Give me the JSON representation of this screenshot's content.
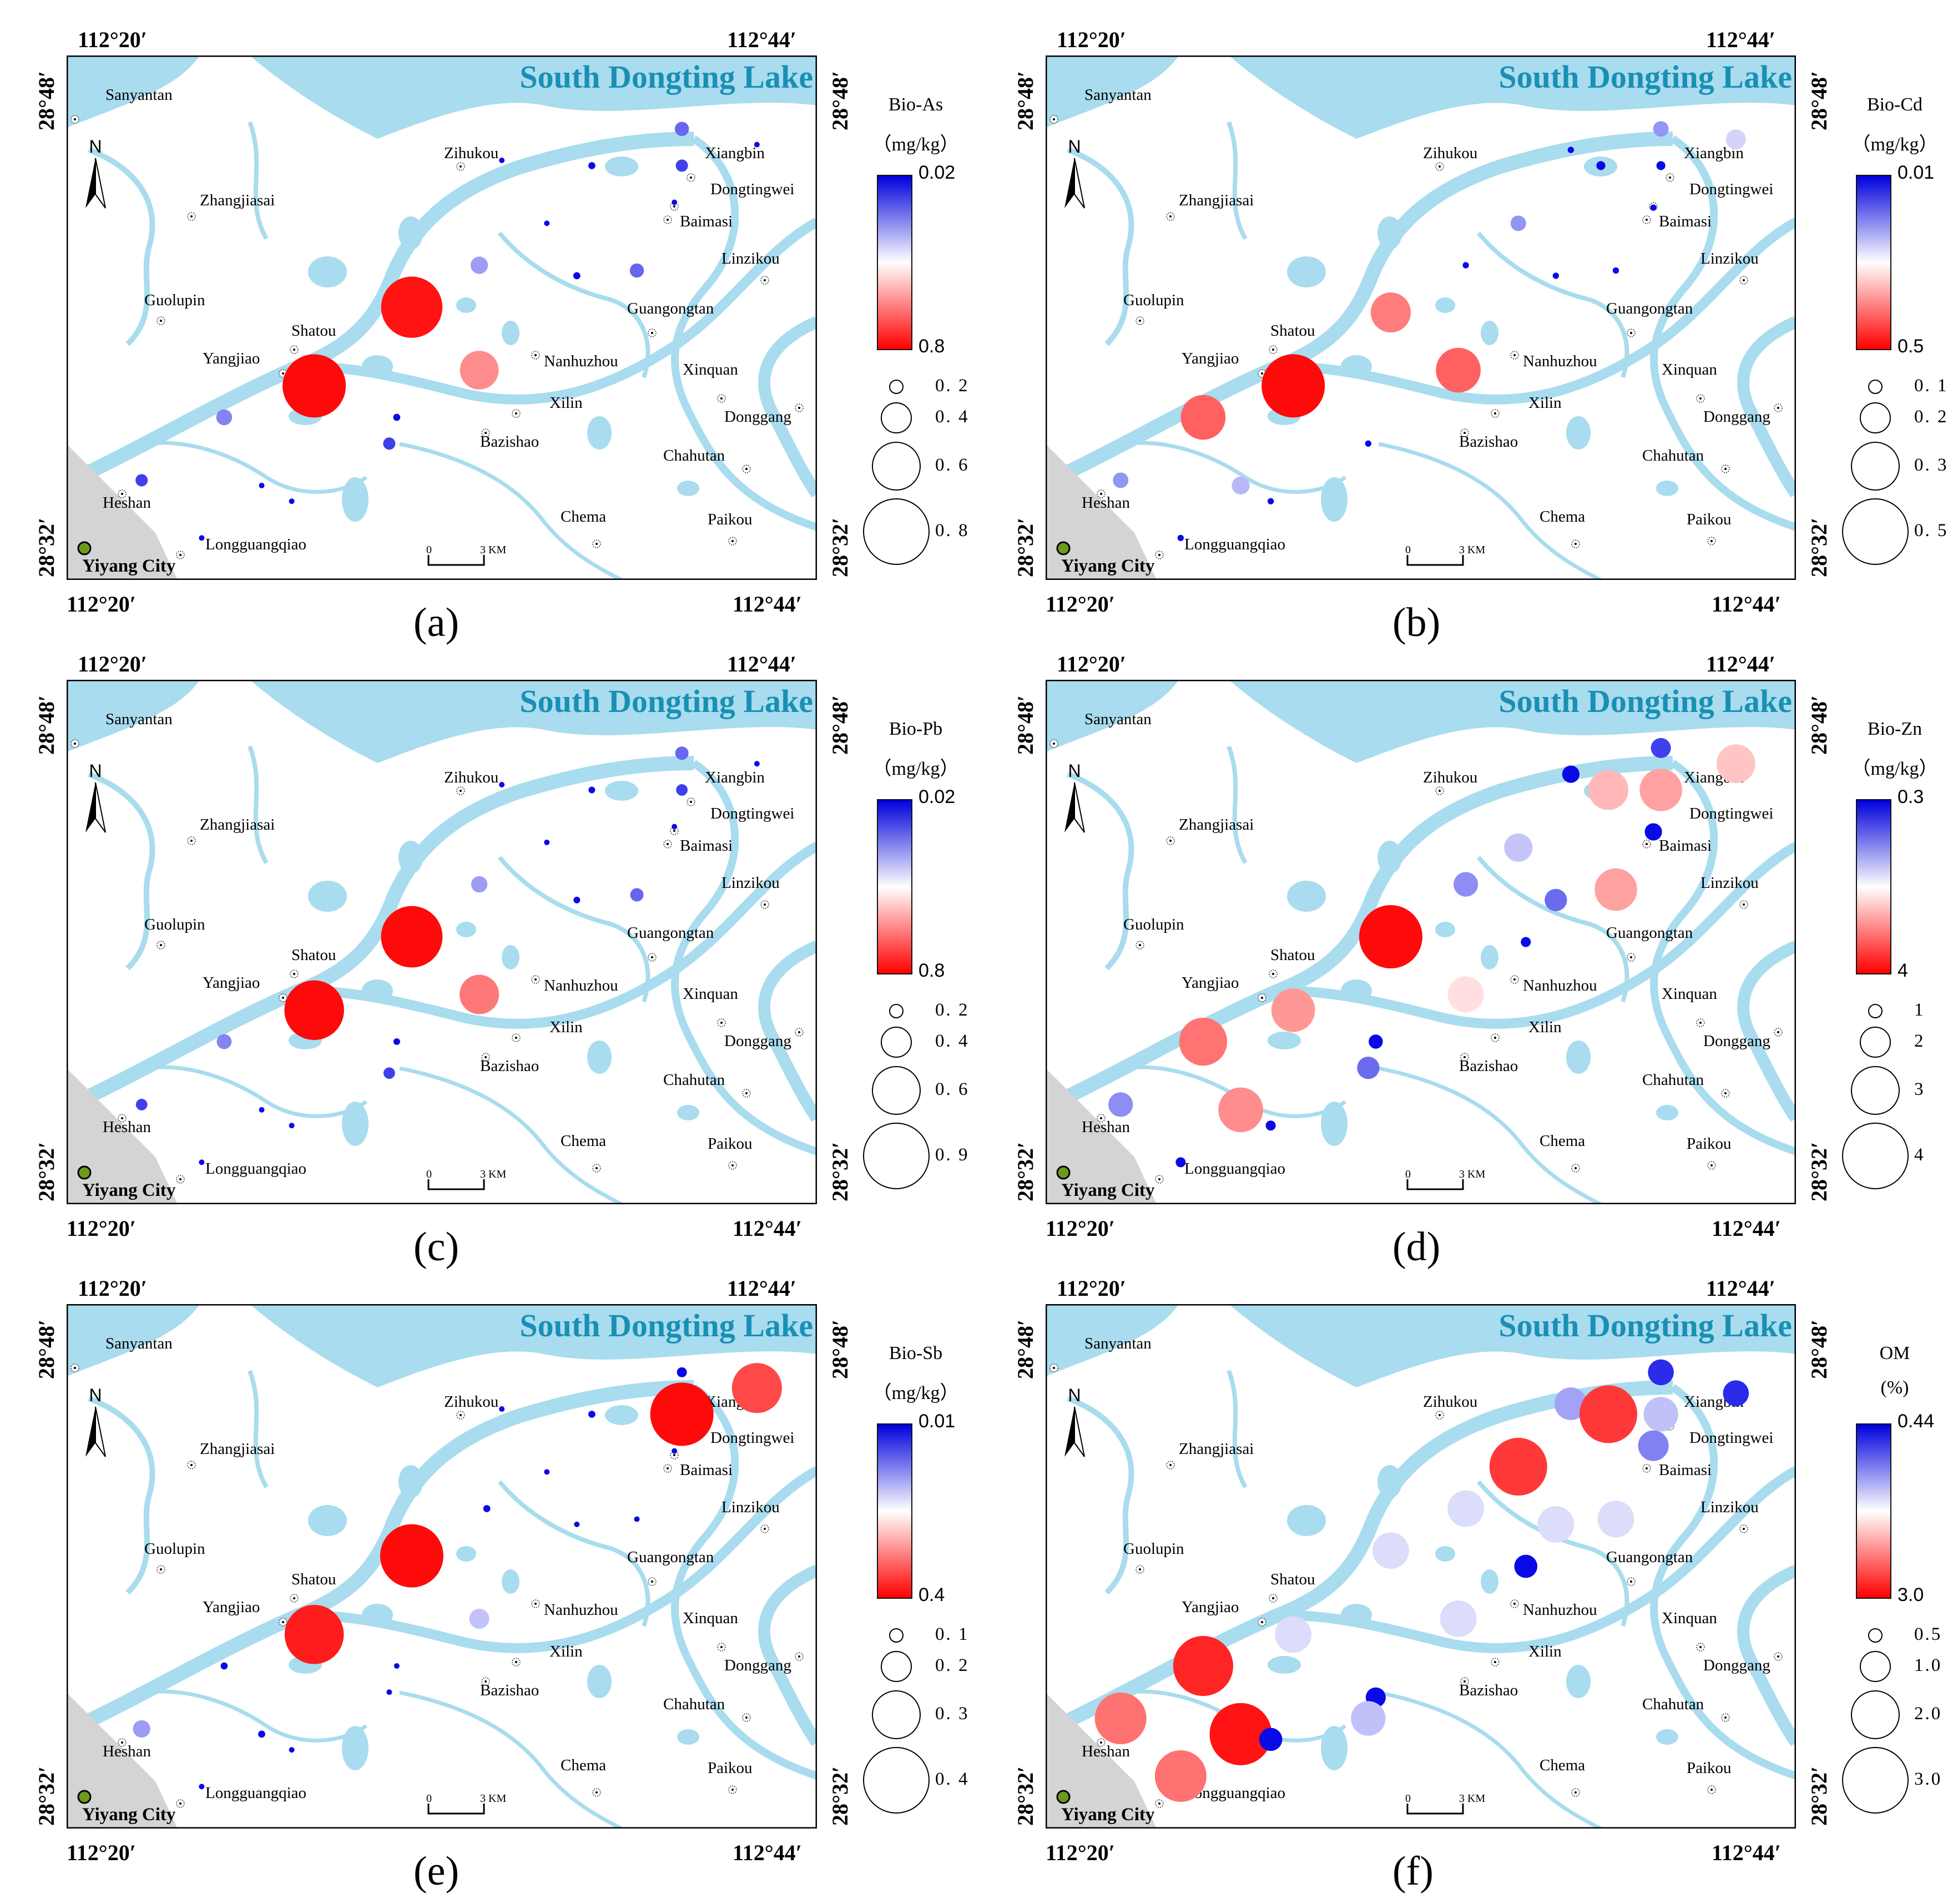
{
  "coords": {
    "lon_left": "112°20′",
    "lon_right": "112°44′",
    "lat_top": "28°48′",
    "lat_bottom": "28°32′"
  },
  "map_labels": {
    "lake": "South Dongting Lake",
    "city": "Yiyang City",
    "north": "N",
    "scale_zero": "0",
    "scale_km": "3 KM",
    "places": [
      "Sanyantan",
      "Zihukou",
      "Xiangbin",
      "Zhangjiasai",
      "Dongtingwei",
      "Baimasi",
      "Linzikou",
      "Guolupin",
      "Shatou",
      "Guangongtan",
      "Yangjiao",
      "Nanhuzhou",
      "Xinquan",
      "Xilin",
      "Donggang",
      "Bazishao",
      "Chahutan",
      "Heshan",
      "Chema",
      "Paikou",
      "Longguangqiao"
    ]
  },
  "colors": {
    "water": "#a8dcee",
    "high": "#ff0000",
    "mid": "#ffffff",
    "low": "#0000dd",
    "lake_text": "#1a8fb5",
    "city_dot": "#6b9a1e",
    "urban": "#d4d4d4"
  },
  "panels": [
    {
      "letter": "(a)",
      "variable": "Bio-As",
      "unit": "（mg/kg）",
      "cbar_top": "0.02",
      "cbar_bottom": "0.8",
      "size_legend": [
        "0. 2",
        "0. 4",
        "0. 6",
        "0. 8"
      ],
      "size_values": [
        0.2,
        0.4,
        0.6,
        0.8
      ],
      "points": [
        {
          "lon": 0.82,
          "lat": 0.86,
          "v": 0.04
        },
        {
          "lon": 0.82,
          "lat": 0.79,
          "v": 0.03
        },
        {
          "lon": 0.92,
          "lat": 0.83,
          "v": 0.005
        },
        {
          "lon": 0.7,
          "lat": 0.79,
          "v": 0.01
        },
        {
          "lon": 0.58,
          "lat": 0.8,
          "v": 0.005
        },
        {
          "lon": 0.64,
          "lat": 0.68,
          "v": 0.005
        },
        {
          "lon": 0.81,
          "lat": 0.72,
          "v": 0.005
        },
        {
          "lon": 0.68,
          "lat": 0.58,
          "v": 0.01
        },
        {
          "lon": 0.76,
          "lat": 0.59,
          "v": 0.04
        },
        {
          "lon": 0.55,
          "lat": 0.6,
          "v": 0.06
        },
        {
          "lon": 0.46,
          "lat": 0.52,
          "v": 0.75
        },
        {
          "lon": 0.55,
          "lat": 0.4,
          "v": 0.3
        },
        {
          "lon": 0.33,
          "lat": 0.37,
          "v": 0.8
        },
        {
          "lon": 0.21,
          "lat": 0.31,
          "v": 0.05
        },
        {
          "lon": 0.44,
          "lat": 0.31,
          "v": 0.01
        },
        {
          "lon": 0.43,
          "lat": 0.26,
          "v": 0.03
        },
        {
          "lon": 0.26,
          "lat": 0.18,
          "v": 0.005
        },
        {
          "lon": 0.3,
          "lat": 0.15,
          "v": 0.005
        },
        {
          "lon": 0.1,
          "lat": 0.19,
          "v": 0.03
        },
        {
          "lon": 0.18,
          "lat": 0.08,
          "v": 0.005
        }
      ]
    },
    {
      "letter": "(b)",
      "variable": "Bio-Cd",
      "unit": "（mg/kg）",
      "cbar_top": "0.01",
      "cbar_bottom": "0.5",
      "size_legend": [
        "0. 1",
        "0. 2",
        "0. 3",
        "0. 5"
      ],
      "size_values": [
        0.1,
        0.2,
        0.3,
        0.5
      ],
      "points": [
        {
          "lon": 0.82,
          "lat": 0.86,
          "v": 0.03
        },
        {
          "lon": 0.92,
          "lat": 0.84,
          "v": 0.05
        },
        {
          "lon": 0.7,
          "lat": 0.82,
          "v": 0.005
        },
        {
          "lon": 0.74,
          "lat": 0.79,
          "v": 0.01
        },
        {
          "lon": 0.82,
          "lat": 0.79,
          "v": 0.01
        },
        {
          "lon": 0.81,
          "lat": 0.71,
          "v": 0.005
        },
        {
          "lon": 0.63,
          "lat": 0.68,
          "v": 0.03
        },
        {
          "lon": 0.56,
          "lat": 0.6,
          "v": 0.005
        },
        {
          "lon": 0.68,
          "lat": 0.58,
          "v": 0.005
        },
        {
          "lon": 0.76,
          "lat": 0.59,
          "v": 0.005
        },
        {
          "lon": 0.46,
          "lat": 0.51,
          "v": 0.2
        },
        {
          "lon": 0.55,
          "lat": 0.4,
          "v": 0.25
        },
        {
          "lon": 0.33,
          "lat": 0.37,
          "v": 0.5
        },
        {
          "lon": 0.21,
          "lat": 0.31,
          "v": 0.25
        },
        {
          "lon": 0.43,
          "lat": 0.26,
          "v": 0.005
        },
        {
          "lon": 0.26,
          "lat": 0.18,
          "v": 0.04
        },
        {
          "lon": 0.3,
          "lat": 0.15,
          "v": 0.005
        },
        {
          "lon": 0.1,
          "lat": 0.19,
          "v": 0.03
        },
        {
          "lon": 0.18,
          "lat": 0.08,
          "v": 0.005
        }
      ]
    },
    {
      "letter": "(c)",
      "variable": "Bio-Pb",
      "unit": "（mg/kg）",
      "cbar_top": "0.02",
      "cbar_bottom": "0.8",
      "size_legend": [
        "0. 2",
        "0. 4",
        "0. 6",
        "0. 9"
      ],
      "size_values": [
        0.2,
        0.4,
        0.6,
        0.9
      ],
      "points": [
        {
          "lon": 0.82,
          "lat": 0.86,
          "v": 0.04
        },
        {
          "lon": 0.82,
          "lat": 0.79,
          "v": 0.03
        },
        {
          "lon": 0.92,
          "lat": 0.84,
          "v": 0.005
        },
        {
          "lon": 0.7,
          "lat": 0.79,
          "v": 0.01
        },
        {
          "lon": 0.58,
          "lat": 0.8,
          "v": 0.005
        },
        {
          "lon": 0.64,
          "lat": 0.69,
          "v": 0.005
        },
        {
          "lon": 0.81,
          "lat": 0.72,
          "v": 0.005
        },
        {
          "lon": 0.68,
          "lat": 0.58,
          "v": 0.01
        },
        {
          "lon": 0.76,
          "lat": 0.59,
          "v": 0.04
        },
        {
          "lon": 0.55,
          "lat": 0.61,
          "v": 0.06
        },
        {
          "lon": 0.46,
          "lat": 0.51,
          "v": 0.85
        },
        {
          "lon": 0.55,
          "lat": 0.4,
          "v": 0.35
        },
        {
          "lon": 0.33,
          "lat": 0.37,
          "v": 0.8
        },
        {
          "lon": 0.21,
          "lat": 0.31,
          "v": 0.05
        },
        {
          "lon": 0.44,
          "lat": 0.31,
          "v": 0.01
        },
        {
          "lon": 0.43,
          "lat": 0.25,
          "v": 0.03
        },
        {
          "lon": 0.26,
          "lat": 0.18,
          "v": 0.005
        },
        {
          "lon": 0.3,
          "lat": 0.15,
          "v": 0.005
        },
        {
          "lon": 0.1,
          "lat": 0.19,
          "v": 0.03
        },
        {
          "lon": 0.18,
          "lat": 0.08,
          "v": 0.005
        }
      ]
    },
    {
      "letter": "(d)",
      "variable": "Bio-Zn",
      "unit": "（mg/kg）",
      "cbar_top": "0.3",
      "cbar_bottom": "4",
      "size_legend": [
        "1",
        "2",
        "3",
        "4"
      ],
      "size_values": [
        1,
        2,
        3,
        4
      ],
      "points": [
        {
          "lon": 0.82,
          "lat": 0.87,
          "v": 0.4
        },
        {
          "lon": 0.7,
          "lat": 0.82,
          "v": 0.3
        },
        {
          "lon": 0.75,
          "lat": 0.79,
          "v": 1.6
        },
        {
          "lon": 0.82,
          "lat": 0.79,
          "v": 1.8
        },
        {
          "lon": 0.92,
          "lat": 0.84,
          "v": 1.5
        },
        {
          "lon": 0.81,
          "lat": 0.71,
          "v": 0.3
        },
        {
          "lon": 0.63,
          "lat": 0.68,
          "v": 0.8
        },
        {
          "lon": 0.56,
          "lat": 0.61,
          "v": 0.6
        },
        {
          "lon": 0.68,
          "lat": 0.58,
          "v": 0.5
        },
        {
          "lon": 0.76,
          "lat": 0.6,
          "v": 1.8
        },
        {
          "lon": 0.64,
          "lat": 0.5,
          "v": 0.1
        },
        {
          "lon": 0.46,
          "lat": 0.51,
          "v": 4
        },
        {
          "lon": 0.56,
          "lat": 0.4,
          "v": 1.3
        },
        {
          "lon": 0.33,
          "lat": 0.37,
          "v": 1.9
        },
        {
          "lon": 0.21,
          "lat": 0.31,
          "v": 2.3
        },
        {
          "lon": 0.44,
          "lat": 0.31,
          "v": 0.2
        },
        {
          "lon": 0.43,
          "lat": 0.26,
          "v": 0.5
        },
        {
          "lon": 0.26,
          "lat": 0.18,
          "v": 2.0
        },
        {
          "lon": 0.3,
          "lat": 0.15,
          "v": 0.1
        },
        {
          "lon": 0.1,
          "lat": 0.19,
          "v": 0.6
        },
        {
          "lon": 0.18,
          "lat": 0.08,
          "v": 0.1
        }
      ]
    },
    {
      "letter": "(e)",
      "variable": "Bio-Sb",
      "unit": "（mg/kg）",
      "cbar_top": "0.01",
      "cbar_bottom": "0.4",
      "size_legend": [
        "0. 1",
        "0. 2",
        "0. 3",
        "0. 4"
      ],
      "size_values": [
        0.1,
        0.2,
        0.3,
        0.4
      ],
      "points": [
        {
          "lon": 0.82,
          "lat": 0.87,
          "v": 0.01
        },
        {
          "lon": 0.82,
          "lat": 0.79,
          "v": 0.4
        },
        {
          "lon": 0.92,
          "lat": 0.84,
          "v": 0.25
        },
        {
          "lon": 0.7,
          "lat": 0.79,
          "v": 0.005
        },
        {
          "lon": 0.58,
          "lat": 0.8,
          "v": 0.002
        },
        {
          "lon": 0.64,
          "lat": 0.68,
          "v": 0.002
        },
        {
          "lon": 0.81,
          "lat": 0.72,
          "v": 0.002
        },
        {
          "lon": 0.68,
          "lat": 0.58,
          "v": 0.002
        },
        {
          "lon": 0.76,
          "lat": 0.59,
          "v": 0.002
        },
        {
          "lon": 0.56,
          "lat": 0.61,
          "v": 0.005
        },
        {
          "lon": 0.46,
          "lat": 0.52,
          "v": 0.4
        },
        {
          "lon": 0.55,
          "lat": 0.4,
          "v": 0.04
        },
        {
          "lon": 0.33,
          "lat": 0.37,
          "v": 0.35
        },
        {
          "lon": 0.21,
          "lat": 0.31,
          "v": 0.005
        },
        {
          "lon": 0.44,
          "lat": 0.31,
          "v": 0.002
        },
        {
          "lon": 0.43,
          "lat": 0.26,
          "v": 0.002
        },
        {
          "lon": 0.26,
          "lat": 0.18,
          "v": 0.005
        },
        {
          "lon": 0.3,
          "lat": 0.15,
          "v": 0.002
        },
        {
          "lon": 0.1,
          "lat": 0.19,
          "v": 0.03
        },
        {
          "lon": 0.18,
          "lat": 0.08,
          "v": 0.002
        }
      ]
    },
    {
      "letter": "(f)",
      "variable": "OM",
      "unit": "(%)",
      "cbar_top": "0.44",
      "cbar_bottom": "3.0",
      "size_legend": [
        "0.5",
        "1.0",
        "2.0",
        "3.0"
      ],
      "size_values": [
        0.5,
        1.0,
        2.0,
        3.0
      ],
      "points": [
        {
          "lon": 0.82,
          "lat": 0.87,
          "v": 0.5
        },
        {
          "lon": 0.92,
          "lat": 0.83,
          "v": 0.5
        },
        {
          "lon": 0.7,
          "lat": 0.81,
          "v": 0.8
        },
        {
          "lon": 0.75,
          "lat": 0.79,
          "v": 2.5
        },
        {
          "lon": 0.82,
          "lat": 0.79,
          "v": 0.9
        },
        {
          "lon": 0.81,
          "lat": 0.73,
          "v": 0.7
        },
        {
          "lon": 0.63,
          "lat": 0.69,
          "v": 2.5
        },
        {
          "lon": 0.56,
          "lat": 0.61,
          "v": 1.0
        },
        {
          "lon": 0.68,
          "lat": 0.58,
          "v": 1.0
        },
        {
          "lon": 0.76,
          "lat": 0.59,
          "v": 1.0
        },
        {
          "lon": 0.64,
          "lat": 0.5,
          "v": 0.4
        },
        {
          "lon": 0.46,
          "lat": 0.53,
          "v": 1.0
        },
        {
          "lon": 0.55,
          "lat": 0.4,
          "v": 1.0
        },
        {
          "lon": 0.33,
          "lat": 0.37,
          "v": 1.0
        },
        {
          "lon": 0.21,
          "lat": 0.31,
          "v": 2.7
        },
        {
          "lon": 0.44,
          "lat": 0.25,
          "v": 0.3
        },
        {
          "lon": 0.43,
          "lat": 0.21,
          "v": 0.9
        },
        {
          "lon": 0.26,
          "lat": 0.18,
          "v": 2.9
        },
        {
          "lon": 0.3,
          "lat": 0.17,
          "v": 0.4
        },
        {
          "lon": 0.1,
          "lat": 0.21,
          "v": 2.0
        },
        {
          "lon": 0.18,
          "lat": 0.1,
          "v": 2.0
        }
      ]
    }
  ]
}
